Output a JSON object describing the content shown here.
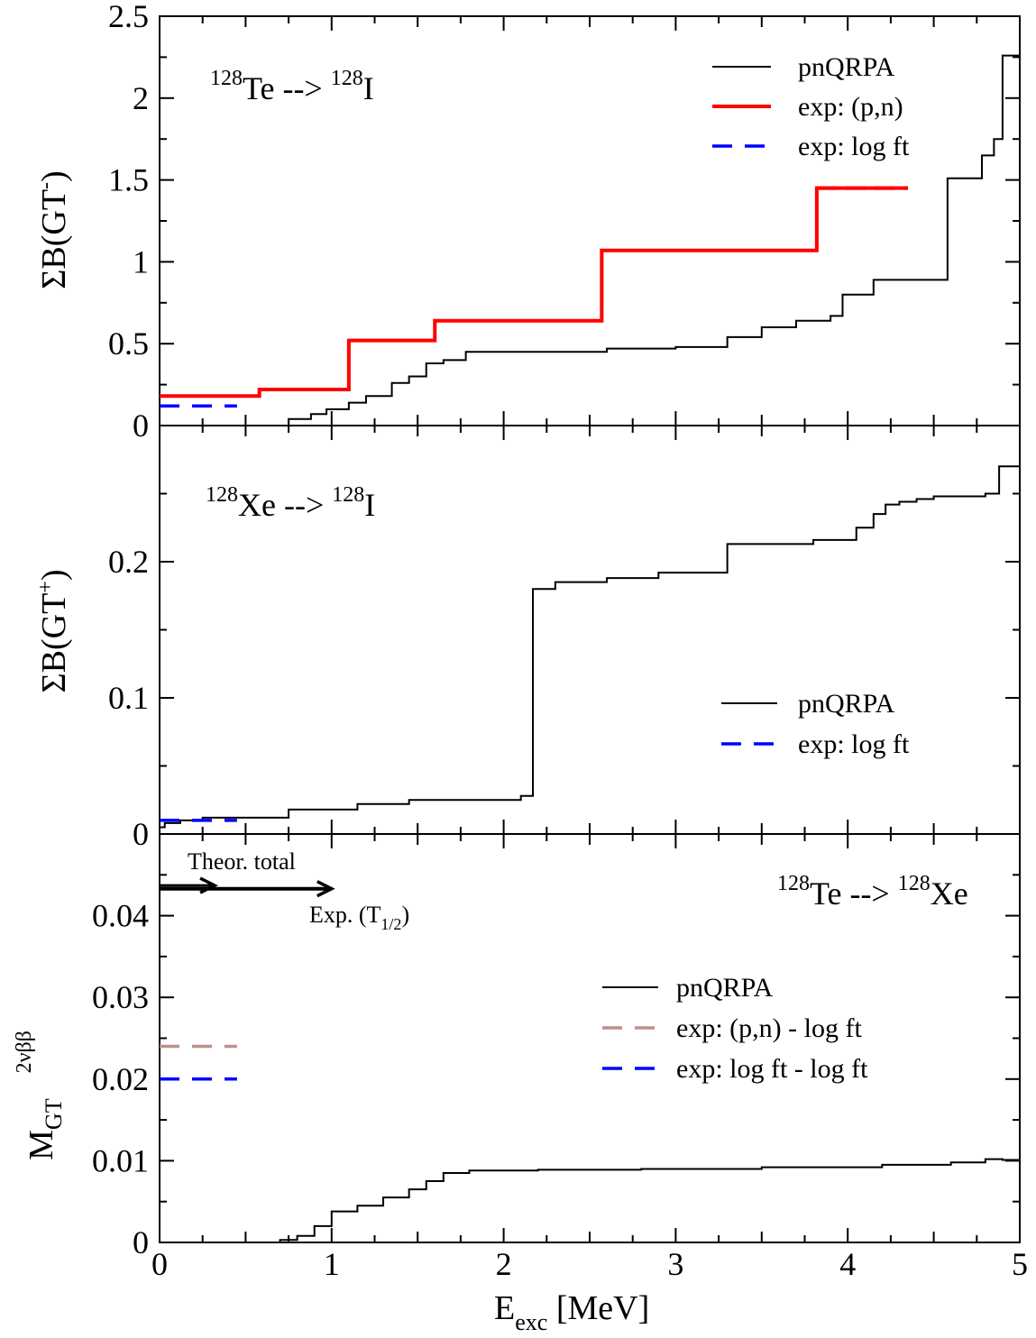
{
  "xaxis": {
    "label_main": "E",
    "label_sub": "exc",
    "label_rest": " [MeV]",
    "range": [
      0,
      5
    ],
    "ticks": [
      "0",
      "1",
      "2",
      "3",
      "4",
      "5"
    ]
  },
  "colors": {
    "pnqrpa": "#000000",
    "pn": "#ff0000",
    "logft": "#0000ff",
    "pn_logft": "#bc8f8f"
  },
  "panels": [
    {
      "id": "gt-minus",
      "ylabel": {
        "prefix": "ΣB(GT",
        "sup": "-",
        "suffix": ")"
      },
      "yrange": [
        0,
        2.5
      ],
      "yticks": [
        "0",
        "0.5",
        "1",
        "1.5",
        "2",
        "2.5"
      ],
      "title": {
        "sup1": "128",
        "t1": "Te --> ",
        "sup2": "128",
        "t2": "I"
      },
      "legend": [
        "pnQRPA",
        "exp: (p,n)",
        "exp: log ft"
      ]
    },
    {
      "id": "gt-plus",
      "ylabel": {
        "prefix": "ΣB(GT",
        "sup": "+",
        "suffix": ")"
      },
      "yrange": [
        0,
        0.3
      ],
      "yticks": [
        "0",
        "0.1",
        "0.2"
      ],
      "title": {
        "sup1": "128",
        "t1": "Xe --> ",
        "sup2": "128",
        "t2": "I"
      },
      "legend": [
        "pnQRPA",
        "exp: log ft"
      ]
    },
    {
      "id": "m2nu",
      "ylabel": {
        "main": "M",
        "sub": "GT",
        "sup": "2νββ"
      },
      "yrange": [
        0,
        0.05
      ],
      "yticks": [
        "0",
        "0.01",
        "0.02",
        "0.03",
        "0.04"
      ],
      "title": {
        "sup1": "128",
        "t1": "Te --> ",
        "sup2": "128",
        "t2": "Xe"
      },
      "legend": [
        "pnQRPA",
        "exp: (p,n) - log ft",
        "exp: log ft - log ft"
      ],
      "annotations": {
        "theor": "Theor. total",
        "exp_main": "Exp. (T",
        "exp_sub": "1/2",
        "exp_close": ")"
      }
    }
  ],
  "chart_data": [
    {
      "type": "line",
      "xlim": [
        0,
        5
      ],
      "ylim": [
        0,
        2.5
      ],
      "series": [
        {
          "name": "pnQRPA",
          "step": true,
          "x": [
            0.58,
            0.75,
            0.88,
            0.97,
            1.1,
            1.2,
            1.35,
            1.45,
            1.55,
            1.65,
            1.78,
            1.9,
            2.2,
            2.6,
            3.0,
            3.3,
            3.5,
            3.7,
            3.9,
            3.97,
            4.15,
            4.58,
            4.78,
            4.85,
            4.9,
            5.0
          ],
          "y": [
            0.0,
            0.04,
            0.07,
            0.1,
            0.14,
            0.18,
            0.26,
            0.3,
            0.38,
            0.4,
            0.45,
            0.45,
            0.45,
            0.47,
            0.48,
            0.54,
            0.6,
            0.64,
            0.67,
            0.8,
            0.89,
            1.51,
            1.65,
            1.75,
            2.26,
            2.26
          ]
        },
        {
          "name": "exp: (p,n)",
          "step": true,
          "x": [
            0,
            0.58,
            1.1,
            1.6,
            2.57,
            3.82,
            4.35
          ],
          "y": [
            0.18,
            0.22,
            0.52,
            0.64,
            1.07,
            1.45,
            1.45
          ]
        },
        {
          "name": "exp: log ft",
          "step": true,
          "x": [
            0,
            0.45
          ],
          "y": [
            0.12,
            0.12
          ]
        }
      ]
    },
    {
      "type": "line",
      "xlim": [
        0,
        5
      ],
      "ylim": [
        0,
        0.3
      ],
      "series": [
        {
          "name": "pnQRPA",
          "step": true,
          "x": [
            0,
            0.03,
            0.12,
            0.25,
            0.75,
            1.15,
            1.45,
            2.1,
            2.17,
            2.3,
            2.6,
            2.9,
            3.3,
            3.8,
            4.05,
            4.15,
            4.22,
            4.3,
            4.4,
            4.5,
            4.8,
            4.88,
            5.0
          ],
          "y": [
            0.005,
            0.008,
            0.01,
            0.012,
            0.018,
            0.022,
            0.025,
            0.028,
            0.18,
            0.185,
            0.188,
            0.192,
            0.213,
            0.216,
            0.225,
            0.235,
            0.242,
            0.244,
            0.246,
            0.248,
            0.25,
            0.27,
            0.27
          ]
        },
        {
          "name": "exp: log ft",
          "step": true,
          "x": [
            0,
            0.45
          ],
          "y": [
            0.01,
            0.01
          ]
        }
      ]
    },
    {
      "type": "line",
      "xlim": [
        0,
        5
      ],
      "ylim": [
        0,
        0.05
      ],
      "series": [
        {
          "name": "pnQRPA",
          "step": true,
          "x": [
            0.6,
            0.7,
            0.8,
            0.9,
            1.0,
            1.15,
            1.3,
            1.45,
            1.55,
            1.65,
            1.8,
            2.2,
            2.8,
            3.5,
            4.2,
            4.6,
            4.8,
            4.9,
            5.0
          ],
          "y": [
            0.0,
            0.0003,
            0.0008,
            0.002,
            0.0038,
            0.0045,
            0.0055,
            0.0065,
            0.0075,
            0.0085,
            0.0088,
            0.0089,
            0.009,
            0.0092,
            0.0095,
            0.0098,
            0.0102,
            0.0101,
            0.0101
          ]
        },
        {
          "name": "exp: (p,n) - log ft",
          "step": true,
          "x": [
            0,
            0.45
          ],
          "y": [
            0.024,
            0.024
          ]
        },
        {
          "name": "exp: log ft - log ft",
          "step": true,
          "x": [
            0,
            0.45
          ],
          "y": [
            0.02,
            0.02
          ]
        }
      ],
      "arrows": [
        {
          "x_end": 0.32,
          "y": 0.0437
        },
        {
          "x_end": 1.0,
          "y": 0.0433
        }
      ]
    }
  ]
}
